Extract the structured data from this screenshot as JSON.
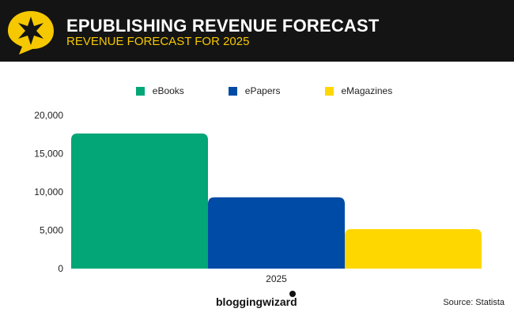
{
  "header": {
    "title": "EPUBLISHING REVENUE FORECAST",
    "subtitle": "REVENUE FORECAST FOR 2025"
  },
  "chart_data": {
    "type": "bar",
    "title": "EPUBLISHING REVENUE FORECAST",
    "subtitle": "REVENUE FORECAST FOR 2025",
    "categories": [
      "2025"
    ],
    "series": [
      {
        "name": "eBooks",
        "values": [
          17630
        ],
        "color": "#02a677"
      },
      {
        "name": "ePapers",
        "values": [
          9300
        ],
        "color": "#004ba6"
      },
      {
        "name": "eMagazines",
        "values": [
          5150
        ],
        "color": "#ffd700"
      }
    ],
    "ylim": [
      0,
      20000
    ],
    "yticks": [
      "0",
      "5,000",
      "10,000",
      "15,000",
      "20,000"
    ],
    "ytick_values": [
      0,
      5000,
      10000,
      15000,
      20000
    ],
    "legend_position": "top-center",
    "grid": false,
    "xlabel": "",
    "ylabel": ""
  },
  "footer": {
    "brand": "bloggingwizard",
    "source": "Source: Statista"
  }
}
